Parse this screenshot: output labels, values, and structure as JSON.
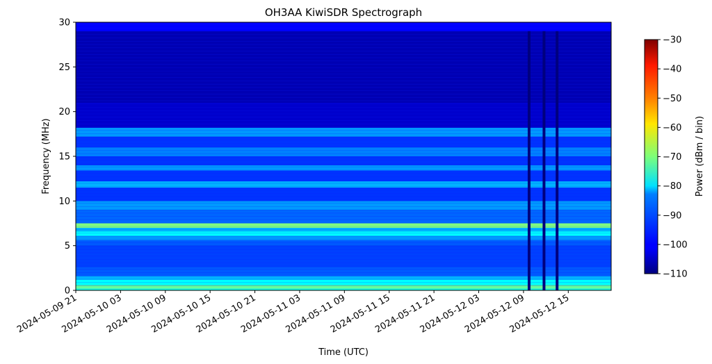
{
  "chart_data": {
    "type": "heatmap",
    "title": "OH3AA KiwiSDR Spectrograph",
    "xlabel": "Time (UTC)",
    "ylabel": "Frequency (MHz)",
    "x_ticks": [
      "2024-05-09 21",
      "2024-05-10 03",
      "2024-05-10 09",
      "2024-05-10 15",
      "2024-05-10 21",
      "2024-05-11 03",
      "2024-05-11 09",
      "2024-05-11 15",
      "2024-05-11 21",
      "2024-05-12 03",
      "2024-05-12 09",
      "2024-05-12 15"
    ],
    "xlim": [
      "2024-05-09 21:00",
      "2024-05-12 20:45"
    ],
    "y_ticks": [
      0,
      5,
      10,
      15,
      20,
      25,
      30
    ],
    "ylim": [
      0,
      30
    ],
    "colormap": "jet",
    "colorbar": {
      "label": "Power (dBm / bin)",
      "range": [
        -110,
        -30
      ],
      "ticks": [
        -30,
        -40,
        -50,
        -60,
        -70,
        -80,
        -90,
        -100,
        -110
      ]
    },
    "bands": [
      {
        "f_lo": 0.0,
        "f_hi": 0.2,
        "power": -78
      },
      {
        "f_lo": 0.2,
        "f_hi": 0.6,
        "power": -72
      },
      {
        "f_lo": 0.6,
        "f_hi": 1.2,
        "power": -80
      },
      {
        "f_lo": 1.2,
        "f_hi": 1.6,
        "power": -86
      },
      {
        "f_lo": 1.6,
        "f_hi": 2.6,
        "power": -93
      },
      {
        "f_lo": 2.6,
        "f_hi": 5.0,
        "power": -95
      },
      {
        "f_lo": 5.0,
        "f_hi": 5.6,
        "power": -93
      },
      {
        "f_lo": 5.6,
        "f_hi": 6.1,
        "power": -88
      },
      {
        "f_lo": 6.1,
        "f_hi": 6.6,
        "power": -80
      },
      {
        "f_lo": 6.6,
        "f_hi": 7.0,
        "power": -86
      },
      {
        "f_lo": 7.0,
        "f_hi": 7.5,
        "power": -70
      },
      {
        "f_lo": 7.5,
        "f_hi": 9.0,
        "power": -92
      },
      {
        "f_lo": 9.0,
        "f_hi": 10.0,
        "power": -88
      },
      {
        "f_lo": 10.0,
        "f_hi": 11.5,
        "power": -96
      },
      {
        "f_lo": 11.5,
        "f_hi": 12.2,
        "power": -86
      },
      {
        "f_lo": 12.2,
        "f_hi": 13.4,
        "power": -96
      },
      {
        "f_lo": 13.4,
        "f_hi": 14.0,
        "power": -88
      },
      {
        "f_lo": 14.0,
        "f_hi": 15.0,
        "power": -96
      },
      {
        "f_lo": 15.0,
        "f_hi": 16.0,
        "power": -90
      },
      {
        "f_lo": 16.0,
        "f_hi": 17.2,
        "power": -96
      },
      {
        "f_lo": 17.2,
        "f_hi": 18.2,
        "power": -88
      },
      {
        "f_lo": 18.2,
        "f_hi": 21.0,
        "power": -104
      },
      {
        "f_lo": 21.0,
        "f_hi": 29.0,
        "power": -106
      },
      {
        "f_lo": 29.0,
        "f_hi": 30.0,
        "power": -100
      }
    ],
    "dropout_times": [
      "2024-05-12 09:45",
      "2024-05-12 11:45",
      "2024-05-12 13:30"
    ]
  }
}
